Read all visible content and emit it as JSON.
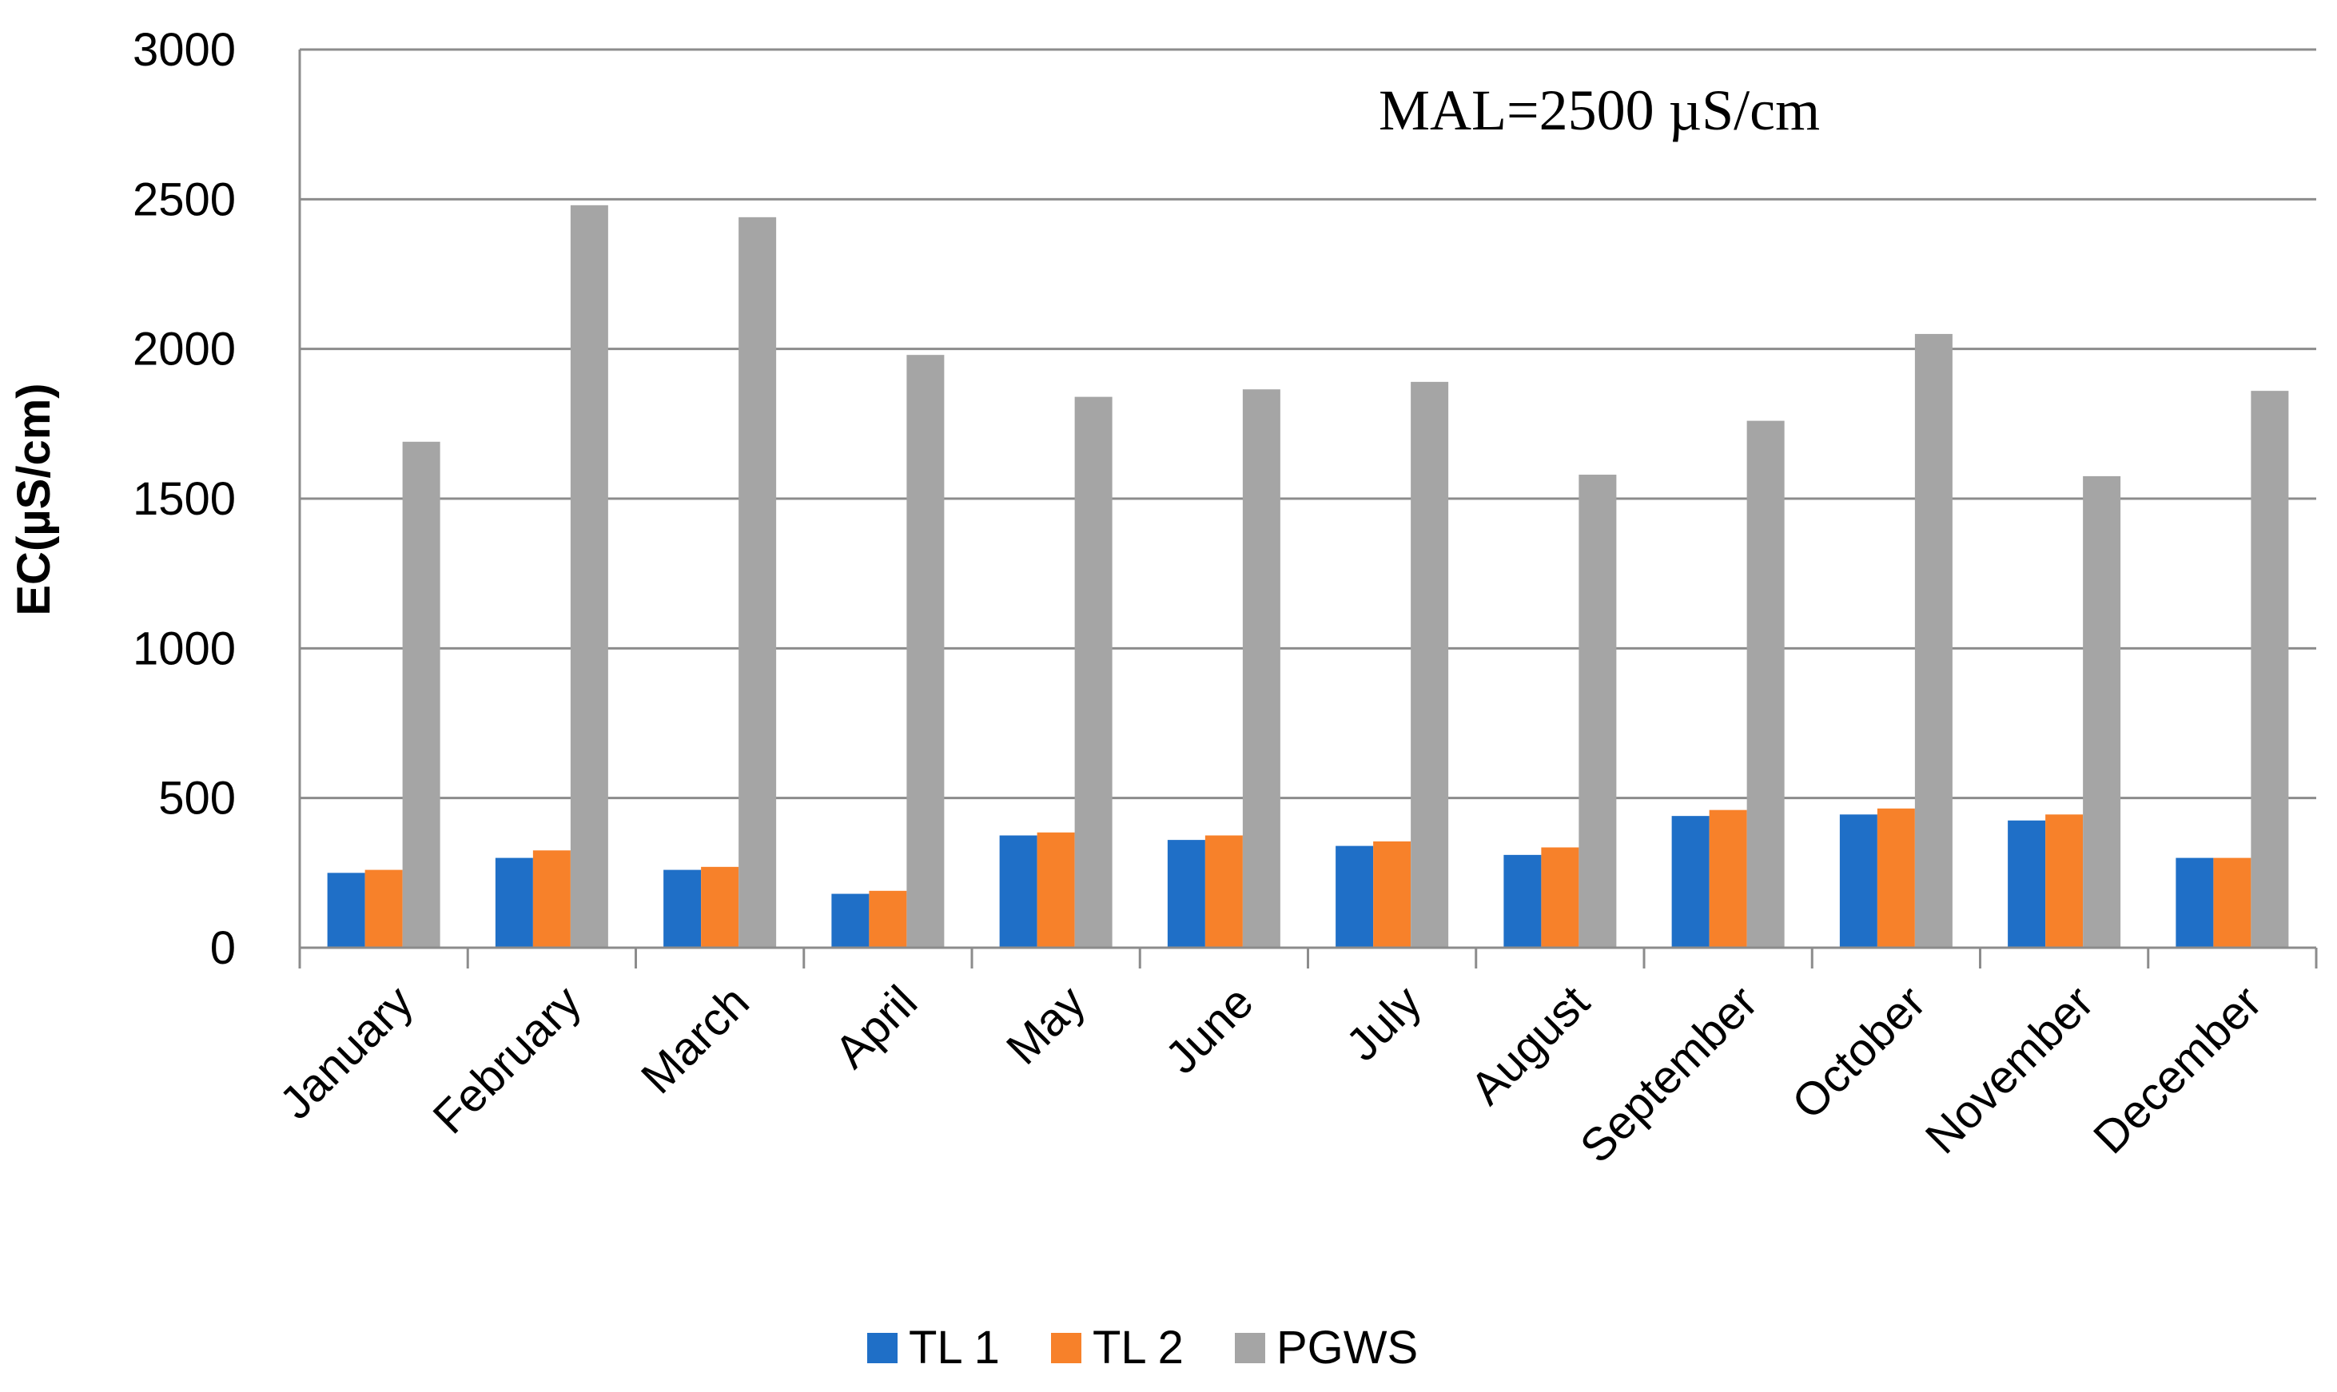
{
  "chart_data": {
    "type": "bar",
    "title": "",
    "xlabel": "",
    "ylabel": "EC(µS/cm)",
    "ylim": [
      0,
      3000
    ],
    "yticks": [
      0,
      500,
      1000,
      1500,
      2000,
      2500,
      3000
    ],
    "grid": true,
    "legend_position": "bottom",
    "annotation": "MAL=2500 µS/cm",
    "categories": [
      "January",
      "February",
      "March",
      "April",
      "May",
      "June",
      "July",
      "August",
      "September",
      "October",
      "November",
      "December"
    ],
    "series": [
      {
        "name": "TL 1",
        "color": "#1f6fc7",
        "values": [
          250,
          300,
          260,
          180,
          375,
          360,
          340,
          310,
          440,
          445,
          425,
          300
        ]
      },
      {
        "name": "TL 2",
        "color": "#f7812a",
        "values": [
          260,
          325,
          270,
          190,
          385,
          375,
          355,
          335,
          460,
          465,
          445,
          300
        ]
      },
      {
        "name": "PGWS",
        "color": "#a5a5a5",
        "values": [
          1690,
          2480,
          2440,
          1980,
          1840,
          1865,
          1890,
          1580,
          1760,
          2050,
          1575,
          1860
        ]
      }
    ]
  }
}
